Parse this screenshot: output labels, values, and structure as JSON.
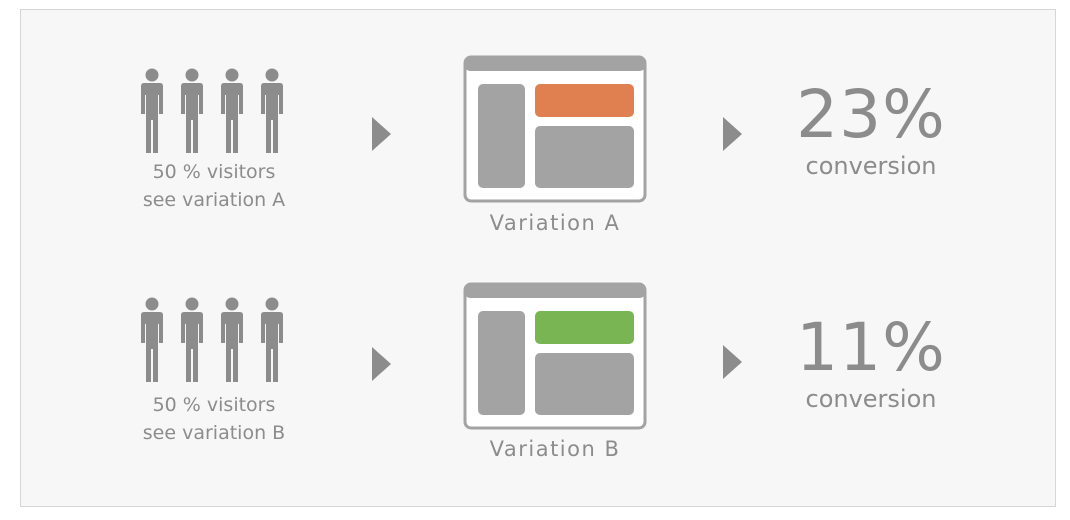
{
  "colors": {
    "gray": "#8c8c8c",
    "variation_a_accent": "#e08050",
    "variation_b_accent": "#79b552",
    "background": "#f7f7f7"
  },
  "rows": [
    {
      "visitors_line1": "50 % visitors",
      "visitors_line2": "see variation A",
      "people_icon": "people-group-icon",
      "variation_label": "Variation A",
      "conversion_value": "23%",
      "conversion_label": "conversion"
    },
    {
      "visitors_line1": "50 % visitors",
      "visitors_line2": "see variation B",
      "people_icon": "people-group-icon",
      "variation_label": "Variation B",
      "conversion_value": "11%",
      "conversion_label": "conversion"
    }
  ]
}
